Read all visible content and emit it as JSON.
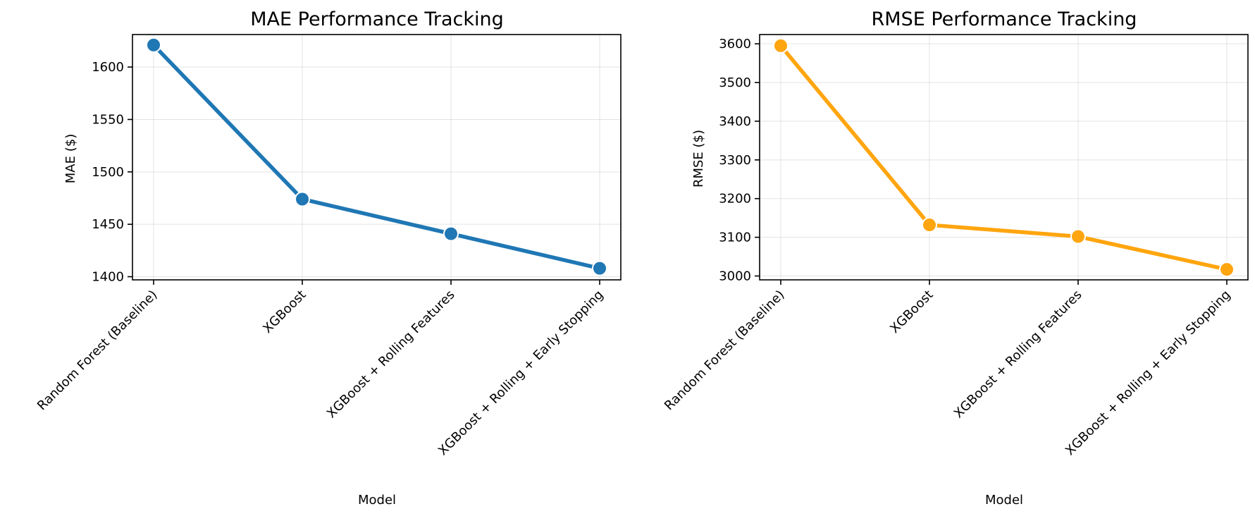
{
  "chart_data": [
    {
      "type": "line",
      "title": "MAE Performance Tracking",
      "xlabel": "Model",
      "ylabel": "MAE ($)",
      "categories": [
        "Random Forest (Baseline)",
        "XGBoost",
        "XGBoost + Rolling Features",
        "XGBoost + Rolling + Early Stopping"
      ],
      "series": [
        {
          "values": [
            1621,
            1474,
            1441,
            1408
          ],
          "color": "#1f77b4"
        }
      ],
      "ylim": [
        1397,
        1631
      ],
      "yticks": [
        1400,
        1450,
        1500,
        1550,
        1600
      ],
      "grid": true,
      "legend": "none"
    },
    {
      "type": "line",
      "title": "RMSE Performance Tracking",
      "xlabel": "Model",
      "ylabel": "RMSE ($)",
      "categories": [
        "Random Forest (Baseline)",
        "XGBoost",
        "XGBoost + Rolling Features",
        "XGBoost + Rolling + Early Stopping"
      ],
      "series": [
        {
          "values": [
            3595,
            3132,
            3102,
            3017
          ],
          "color": "#ffa50f"
        }
      ],
      "ylim": [
        2990,
        3624
      ],
      "yticks": [
        3000,
        3100,
        3200,
        3300,
        3400,
        3500,
        3600
      ],
      "grid": true,
      "legend": "none"
    }
  ]
}
